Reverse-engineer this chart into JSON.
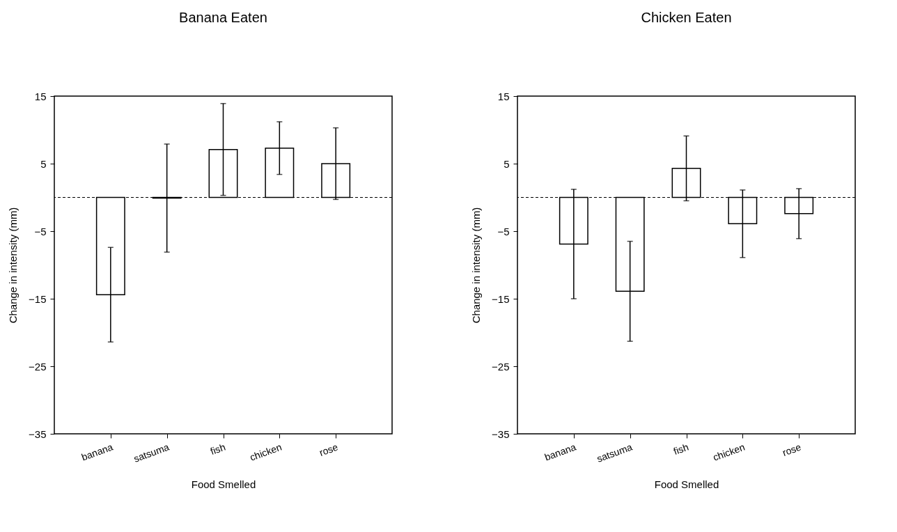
{
  "chart_data": [
    {
      "type": "bar",
      "title": "Banana Eaten",
      "xlabel": "Food Smelled",
      "ylabel": "Change in intensity (mm)",
      "categories": [
        "banana",
        "satsuma",
        "fish",
        "chicken",
        "rose"
      ],
      "series": [
        {
          "color": "#ffffff",
          "values": [
            -14.4,
            -0.1,
            7.1,
            7.3,
            5.0
          ],
          "errors": [
            7.0,
            8.0,
            6.8,
            3.9,
            5.3
          ]
        }
      ],
      "ylim": [
        -35,
        15
      ],
      "yticks": [
        -35,
        -25,
        -15,
        -5,
        5,
        15
      ],
      "ref_lines": [
        {
          "axis": "y",
          "value": 0,
          "line_style": "dashed"
        }
      ]
    },
    {
      "type": "bar",
      "title": "Chicken Eaten",
      "xlabel": "Food Smelled",
      "ylabel": "Change in intensity (mm)",
      "categories": [
        "banana",
        "satsuma",
        "fish",
        "chicken",
        "rose"
      ],
      "series": [
        {
          "color": "#ffffff",
          "values": [
            -6.9,
            -13.9,
            4.3,
            -3.9,
            -2.4
          ],
          "errors": [
            8.1,
            7.4,
            4.8,
            5.0,
            3.7
          ]
        }
      ],
      "ylim": [
        -35,
        15
      ],
      "yticks": [
        -35,
        -25,
        -15,
        -5,
        5,
        15
      ],
      "ref_lines": [
        {
          "axis": "y",
          "value": 0,
          "line_style": "dashed"
        }
      ]
    }
  ]
}
